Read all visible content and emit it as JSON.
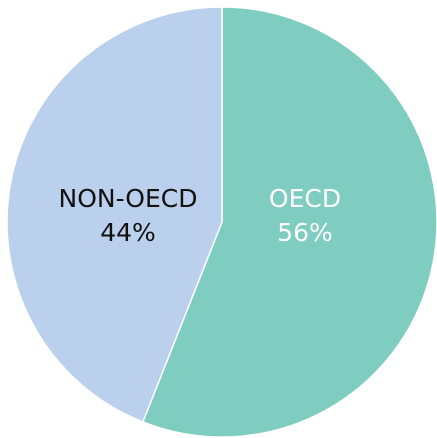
{
  "chart_data": {
    "type": "pie",
    "title": "",
    "categories": [
      "OECD",
      "NON-OECD"
    ],
    "values": [
      56,
      44
    ],
    "slices": [
      {
        "label": "OECD",
        "value": 56,
        "value_label": "56%",
        "color": "#7ecdc0",
        "text_color": "#ffffff"
      },
      {
        "label": "NON-OECD",
        "value": 44,
        "value_label": "44%",
        "color": "#bbd0ec",
        "text_color": "#111111"
      }
    ],
    "start": "12 o'clock",
    "direction": "clockwise",
    "legend": "none"
  }
}
